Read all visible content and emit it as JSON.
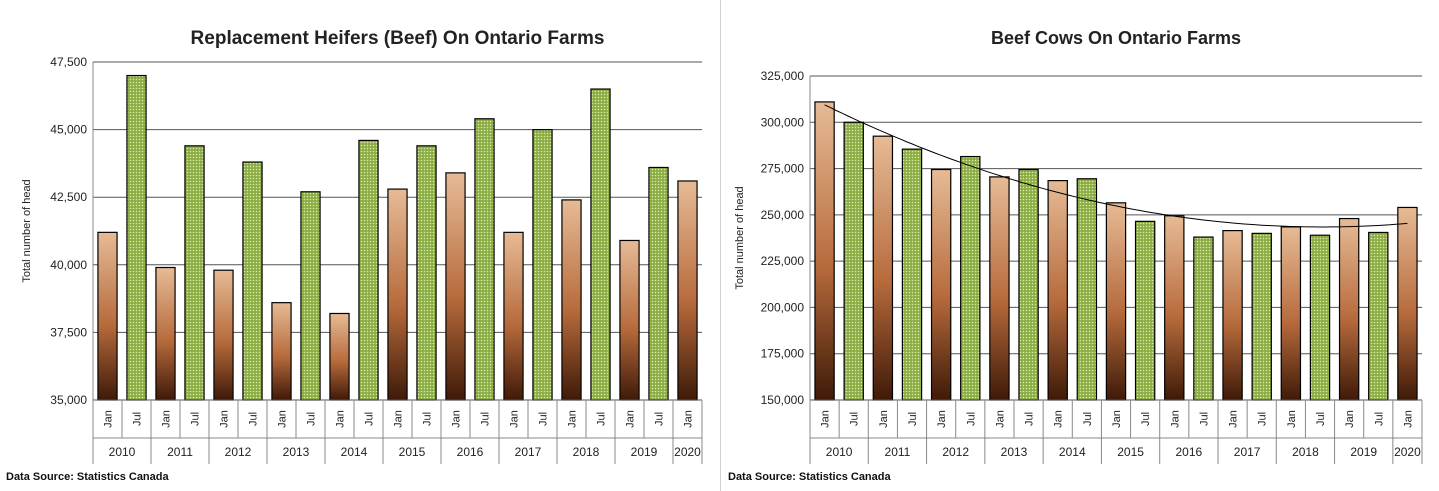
{
  "colors": {
    "jan_top": "#e6bb96",
    "jan_mid": "#b76b3c",
    "jan_bottom": "#3f1a08",
    "jul_fill": "#8aac42",
    "jul_dots": "#d8eab0",
    "gridline": "#555555",
    "trendline": "#000000"
  },
  "chart_data": [
    {
      "type": "bar",
      "title": "Replacement Heifers (Beef) On Ontario Farms",
      "ylabel": "Total number of head",
      "xlabel": "",
      "ylim": [
        35000,
        47500
      ],
      "yticks": [
        "35,000",
        "37,500",
        "40,000",
        "42,500",
        "45,000",
        "47,500"
      ],
      "ytick_values": [
        35000,
        37500,
        40000,
        42500,
        45000,
        47500
      ],
      "categories": [
        "Jan",
        "Jul",
        "Jan",
        "Jul",
        "Jan",
        "Jul",
        "Jan",
        "Jul",
        "Jan",
        "Jul",
        "Jan",
        "Jul",
        "Jan",
        "Jul",
        "Jan",
        "Jul",
        "Jan",
        "Jul",
        "Jan",
        "Jul",
        "Jan"
      ],
      "years": [
        "2010",
        "2011",
        "2012",
        "2013",
        "2014",
        "2015",
        "2016",
        "2017",
        "2018",
        "2019",
        "2020"
      ],
      "values": [
        41200,
        47000,
        39900,
        44400,
        39800,
        43800,
        38600,
        42700,
        38200,
        44600,
        42800,
        44400,
        43400,
        45400,
        41200,
        45000,
        42400,
        46500,
        40900,
        43600,
        43100
      ],
      "grid": true,
      "source": "Data Source: Statistics Canada"
    },
    {
      "type": "bar",
      "title": "Beef Cows On Ontario Farms",
      "ylabel": "Total number of head",
      "xlabel": "",
      "ylim": [
        150000,
        325000
      ],
      "yticks": [
        "150,000",
        "175,000",
        "200,000",
        "225,000",
        "250,000",
        "275,000",
        "300,000",
        "325,000"
      ],
      "ytick_values": [
        150000,
        175000,
        200000,
        225000,
        250000,
        275000,
        300000,
        325000
      ],
      "categories": [
        "Jan",
        "Jul",
        "Jan",
        "Jul",
        "Jan",
        "Jul",
        "Jan",
        "Jul",
        "Jan",
        "Jul",
        "Jan",
        "Jul",
        "Jan",
        "Jul",
        "Jan",
        "Jul",
        "Jan",
        "Jul",
        "Jan",
        "Jul",
        "Jan"
      ],
      "years": [
        "2010",
        "2011",
        "2012",
        "2013",
        "2014",
        "2015",
        "2016",
        "2017",
        "2018",
        "2019",
        "2020"
      ],
      "values": [
        311000,
        300000,
        292500,
        285500,
        274500,
        281500,
        270500,
        274500,
        268500,
        269500,
        256500,
        246500,
        249500,
        238000,
        241500,
        240000,
        243500,
        239000,
        248000,
        240500,
        254000
      ],
      "grid": true,
      "trendline": true,
      "source": "Data Source: Statistics Canada"
    }
  ]
}
